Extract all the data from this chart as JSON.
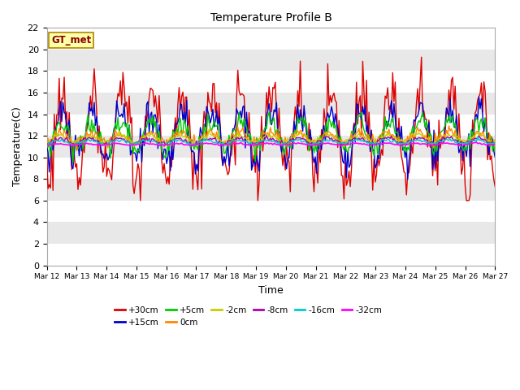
{
  "title": "Temperature Profile B",
  "xlabel": "Time",
  "ylabel": "Temperature(C)",
  "ylim": [
    0,
    22
  ],
  "background_color": "#f0f0f0",
  "annotation": "GT_met",
  "series_order": [
    "+30cm",
    "+15cm",
    "+5cm",
    "0cm",
    "-2cm",
    "-8cm",
    "-16cm",
    "-32cm"
  ],
  "series": {
    "+30cm": {
      "color": "#dd0000",
      "lw": 1.0
    },
    "+15cm": {
      "color": "#0000cc",
      "lw": 1.0
    },
    "+5cm": {
      "color": "#00cc00",
      "lw": 1.0
    },
    "0cm": {
      "color": "#ff8800",
      "lw": 1.0
    },
    "-2cm": {
      "color": "#cccc00",
      "lw": 1.0
    },
    "-8cm": {
      "color": "#aa00aa",
      "lw": 1.0
    },
    "-16cm": {
      "color": "#00cccc",
      "lw": 1.0
    },
    "-32cm": {
      "color": "#ff00ff",
      "lw": 1.2
    }
  },
  "xtick_labels": [
    "Mar 12",
    "Mar 13",
    "Mar 14",
    "Mar 15",
    "Mar 16",
    "Mar 17",
    "Mar 18",
    "Mar 19",
    "Mar 20",
    "Mar 21",
    "Mar 22",
    "Mar 23",
    "Mar 24",
    "Mar 25",
    "Mar 26",
    "Mar 27"
  ],
  "ytick_vals": [
    0,
    2,
    4,
    6,
    8,
    10,
    12,
    14,
    16,
    18,
    20,
    22
  ],
  "band_colors": [
    "#ffffff",
    "#e8e8e8"
  ],
  "legend_row1": [
    "+30cm",
    "+15cm",
    "+5cm",
    "0cm",
    "-2cm",
    "-8cm"
  ],
  "legend_row2": [
    "-16cm",
    "-32cm"
  ]
}
